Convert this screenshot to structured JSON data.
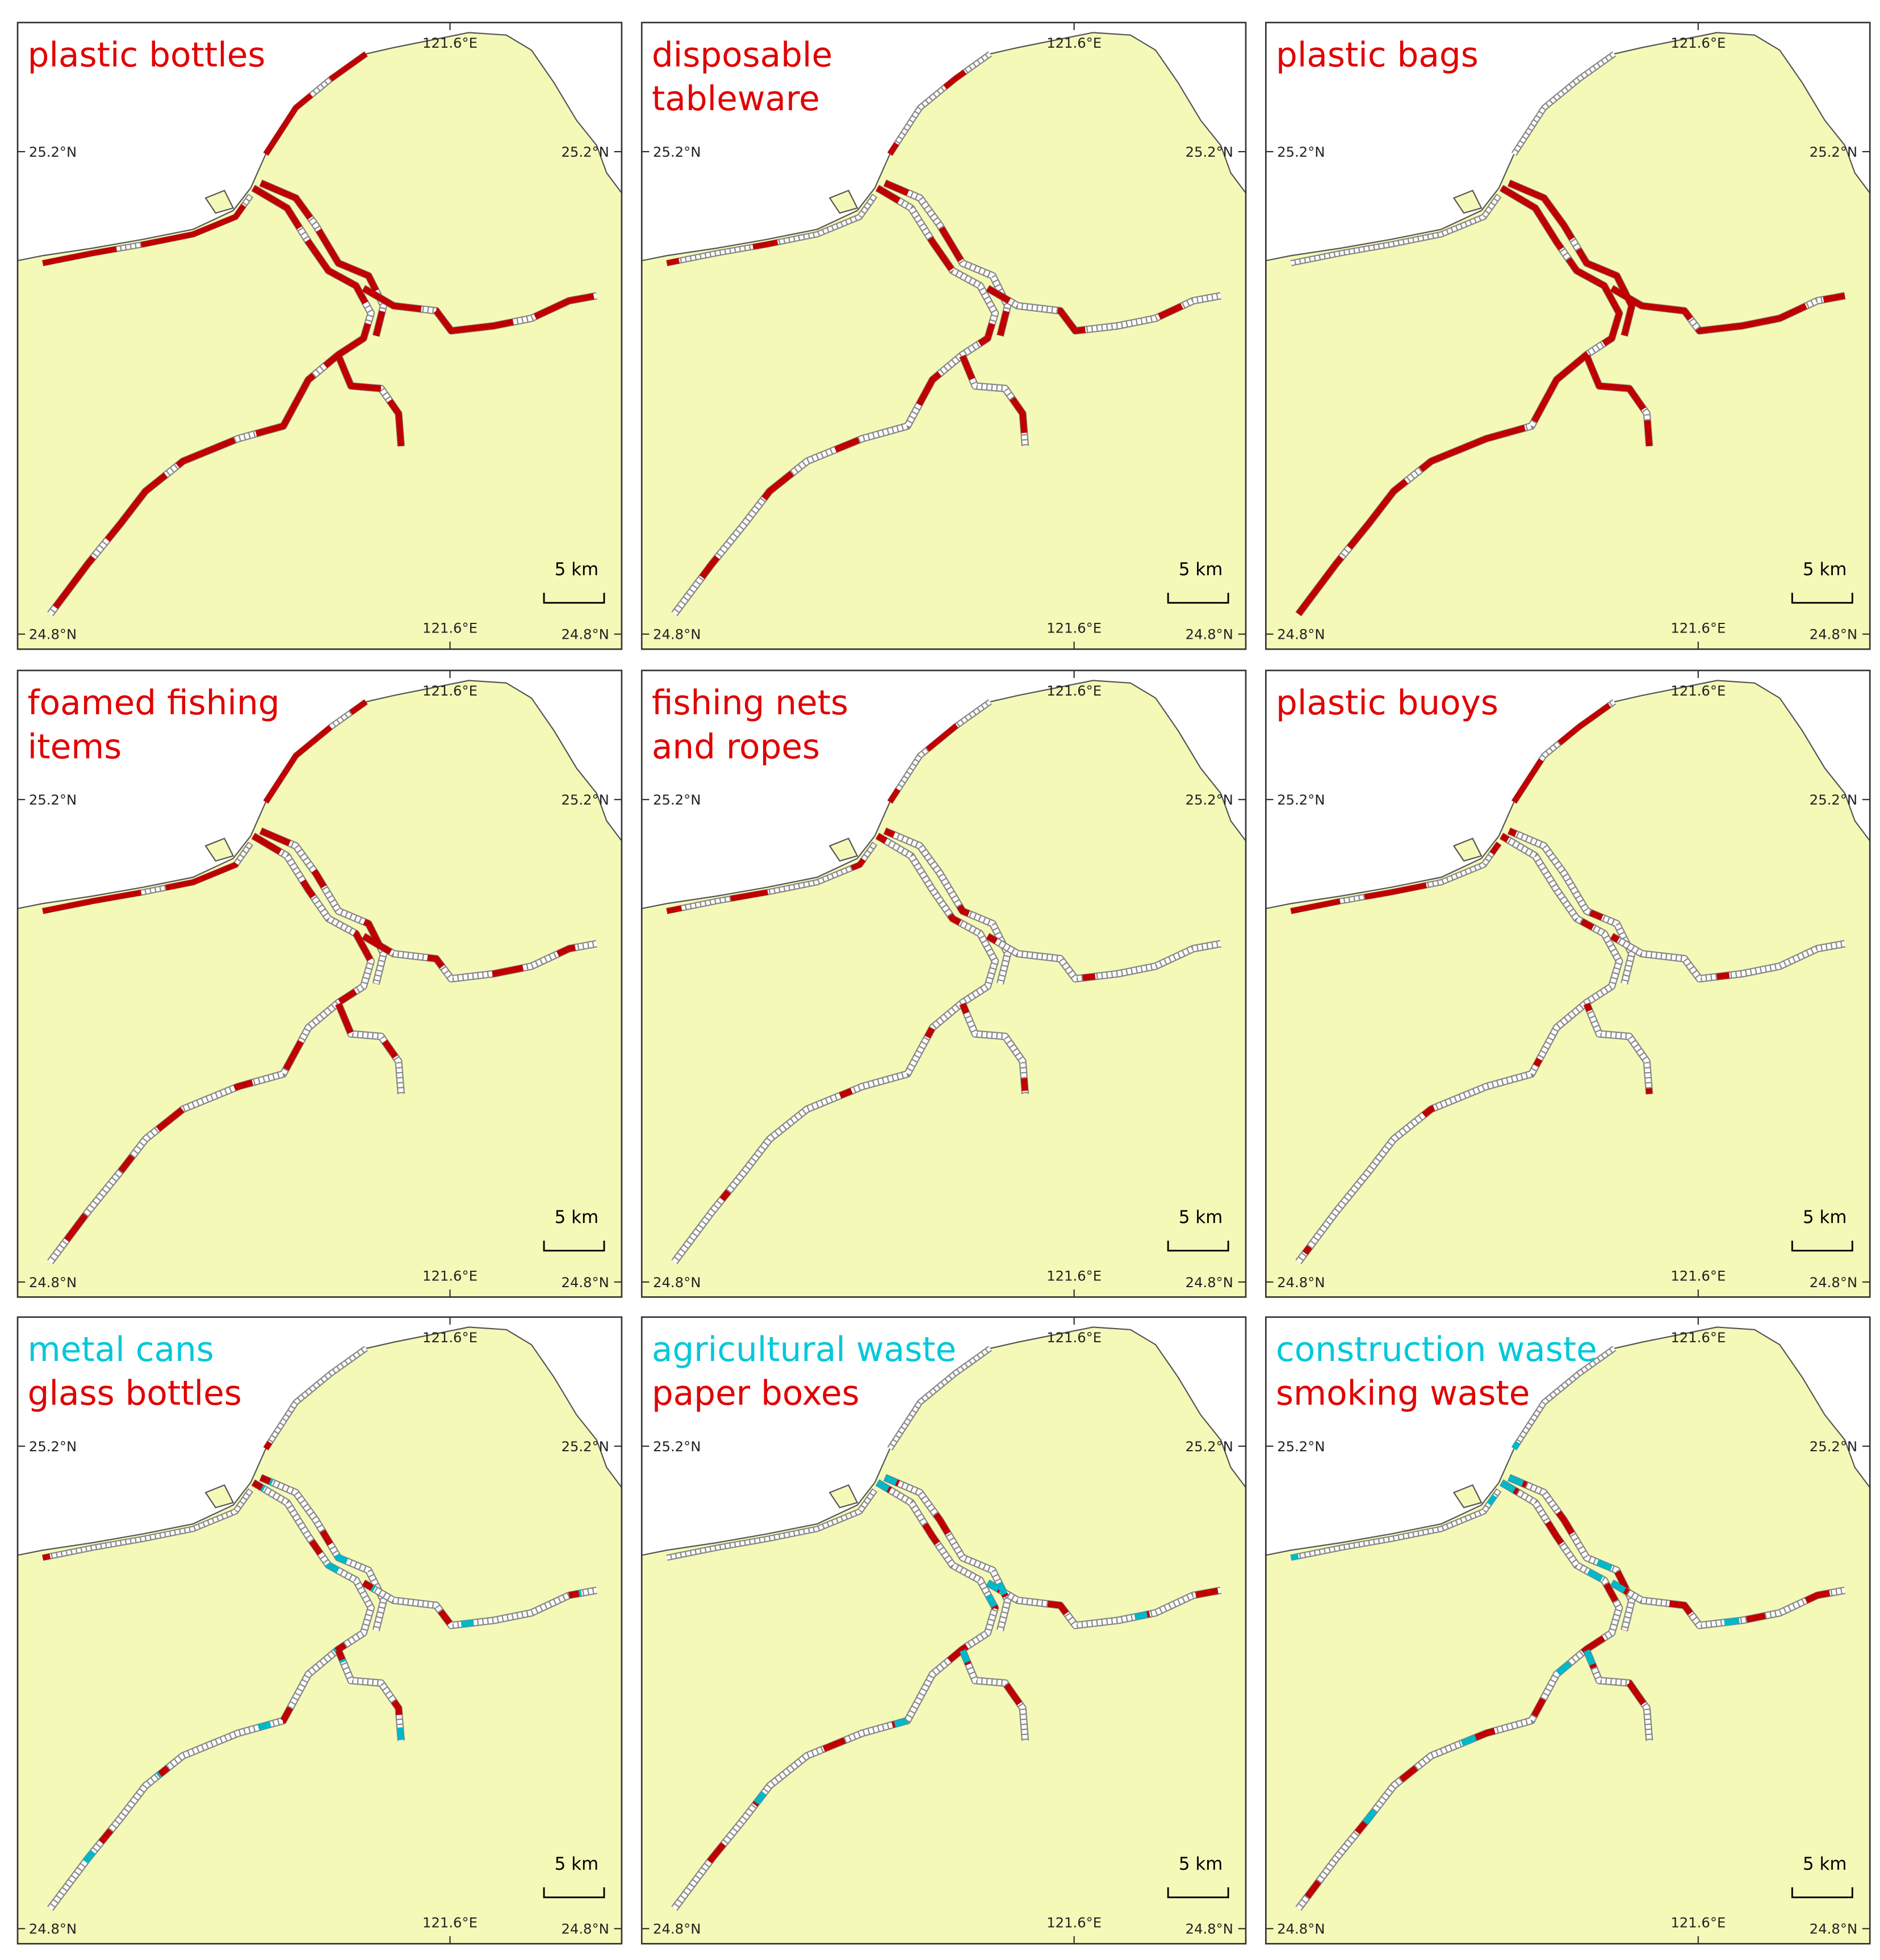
{
  "panels": [
    {
      "title": [
        {
          "text": "plastic bottles",
          "color": "#e00000"
        }
      ]
    },
    {
      "title": [
        {
          "text": "disposable",
          "color": "#e00000"
        },
        {
          "text": "tableware",
          "color": "#e00000"
        }
      ]
    },
    {
      "title": [
        {
          "text": "plastic bags",
          "color": "#e00000"
        }
      ]
    },
    {
      "title": [
        {
          "text": "foamed fishing",
          "color": "#e00000"
        },
        {
          "text": "items",
          "color": "#e00000"
        }
      ]
    },
    {
      "title": [
        {
          "text": "fishing nets",
          "color": "#e00000"
        },
        {
          "text": "and ropes",
          "color": "#e00000"
        }
      ]
    },
    {
      "title": [
        {
          "text": "plastic buoys",
          "color": "#e00000"
        }
      ]
    },
    {
      "title": [
        {
          "text": "metal cans",
          "color": "#00c8d8"
        },
        {
          "text": "glass bottles",
          "color": "#e00000"
        }
      ]
    },
    {
      "title": [
        {
          "text": "agricultural waste",
          "color": "#00c8d8"
        },
        {
          "text": "paper boxes",
          "color": "#e00000"
        }
      ]
    },
    {
      "title": [
        {
          "text": "construction waste",
          "color": "#00c8d8"
        },
        {
          "text": "smoking waste",
          "color": "#e00000"
        }
      ]
    }
  ],
  "labels": {
    "lon": "121.6°E",
    "lat_north": "25.2°N",
    "lat_south": "24.8°N",
    "scale": "5 km"
  }
}
